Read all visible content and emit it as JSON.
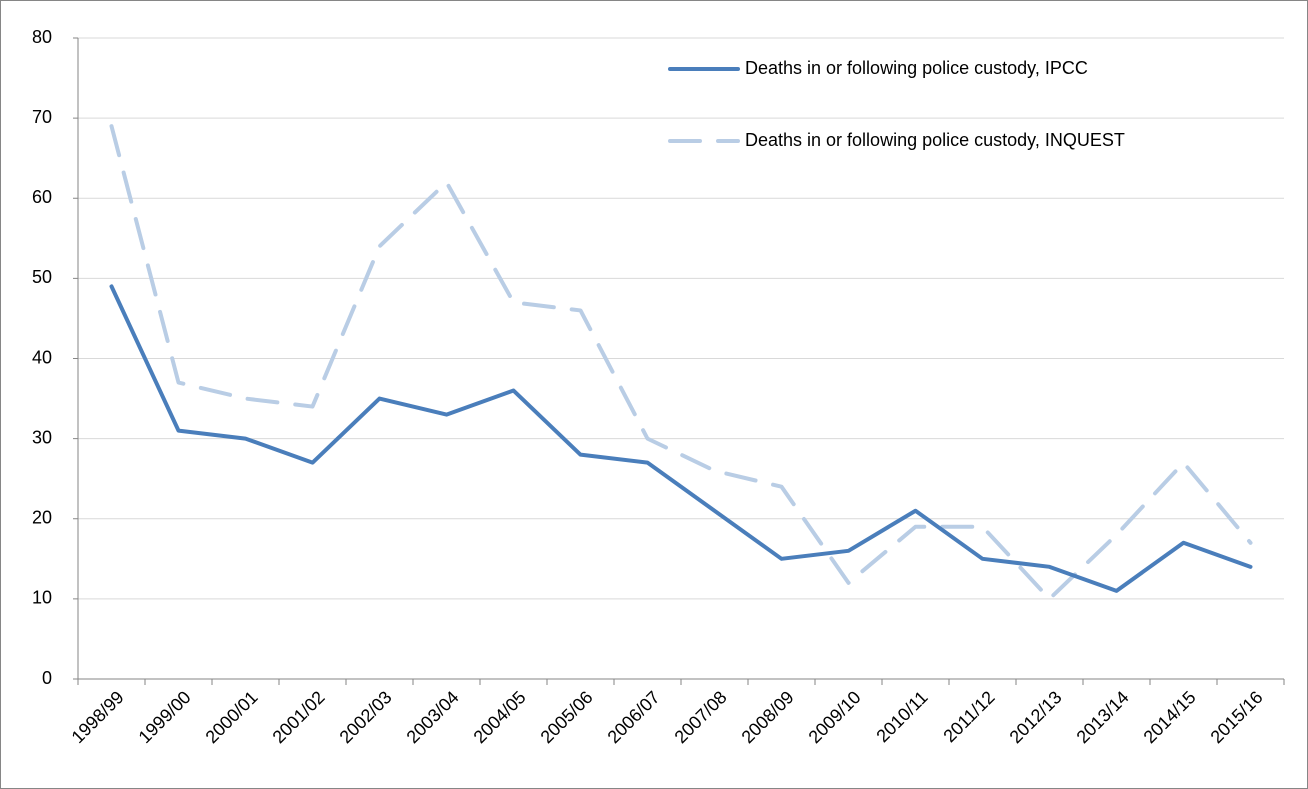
{
  "chart_data": {
    "type": "line",
    "categories": [
      "1998/99",
      "1999/00",
      "2000/01",
      "2001/02",
      "2002/03",
      "2003/04",
      "2004/05",
      "2005/06",
      "2006/07",
      "2007/08",
      "2008/09",
      "2009/10",
      "2010/11",
      "2011/12",
      "2012/13",
      "2013/14",
      "2014/15",
      "2015/16"
    ],
    "series": [
      {
        "name": "Deaths in or following police custody, IPCC",
        "color": "#4a7ebb",
        "dash": false,
        "values": [
          49,
          31,
          30,
          27,
          35,
          33,
          36,
          28,
          27,
          21,
          15,
          16,
          21,
          15,
          14,
          11,
          17,
          14
        ]
      },
      {
        "name": "Deaths in or following police custody, INQUEST",
        "color": "#b9cde5",
        "dash": true,
        "values": [
          69,
          37,
          35,
          34,
          54,
          62,
          47,
          46,
          30,
          26,
          24,
          12,
          19,
          19,
          10,
          18,
          27,
          17
        ]
      }
    ],
    "ylim": [
      0,
      80
    ],
    "yticks": [
      0,
      10,
      20,
      30,
      40,
      50,
      60,
      70,
      80
    ],
    "grid": true,
    "legend": "top-right"
  }
}
